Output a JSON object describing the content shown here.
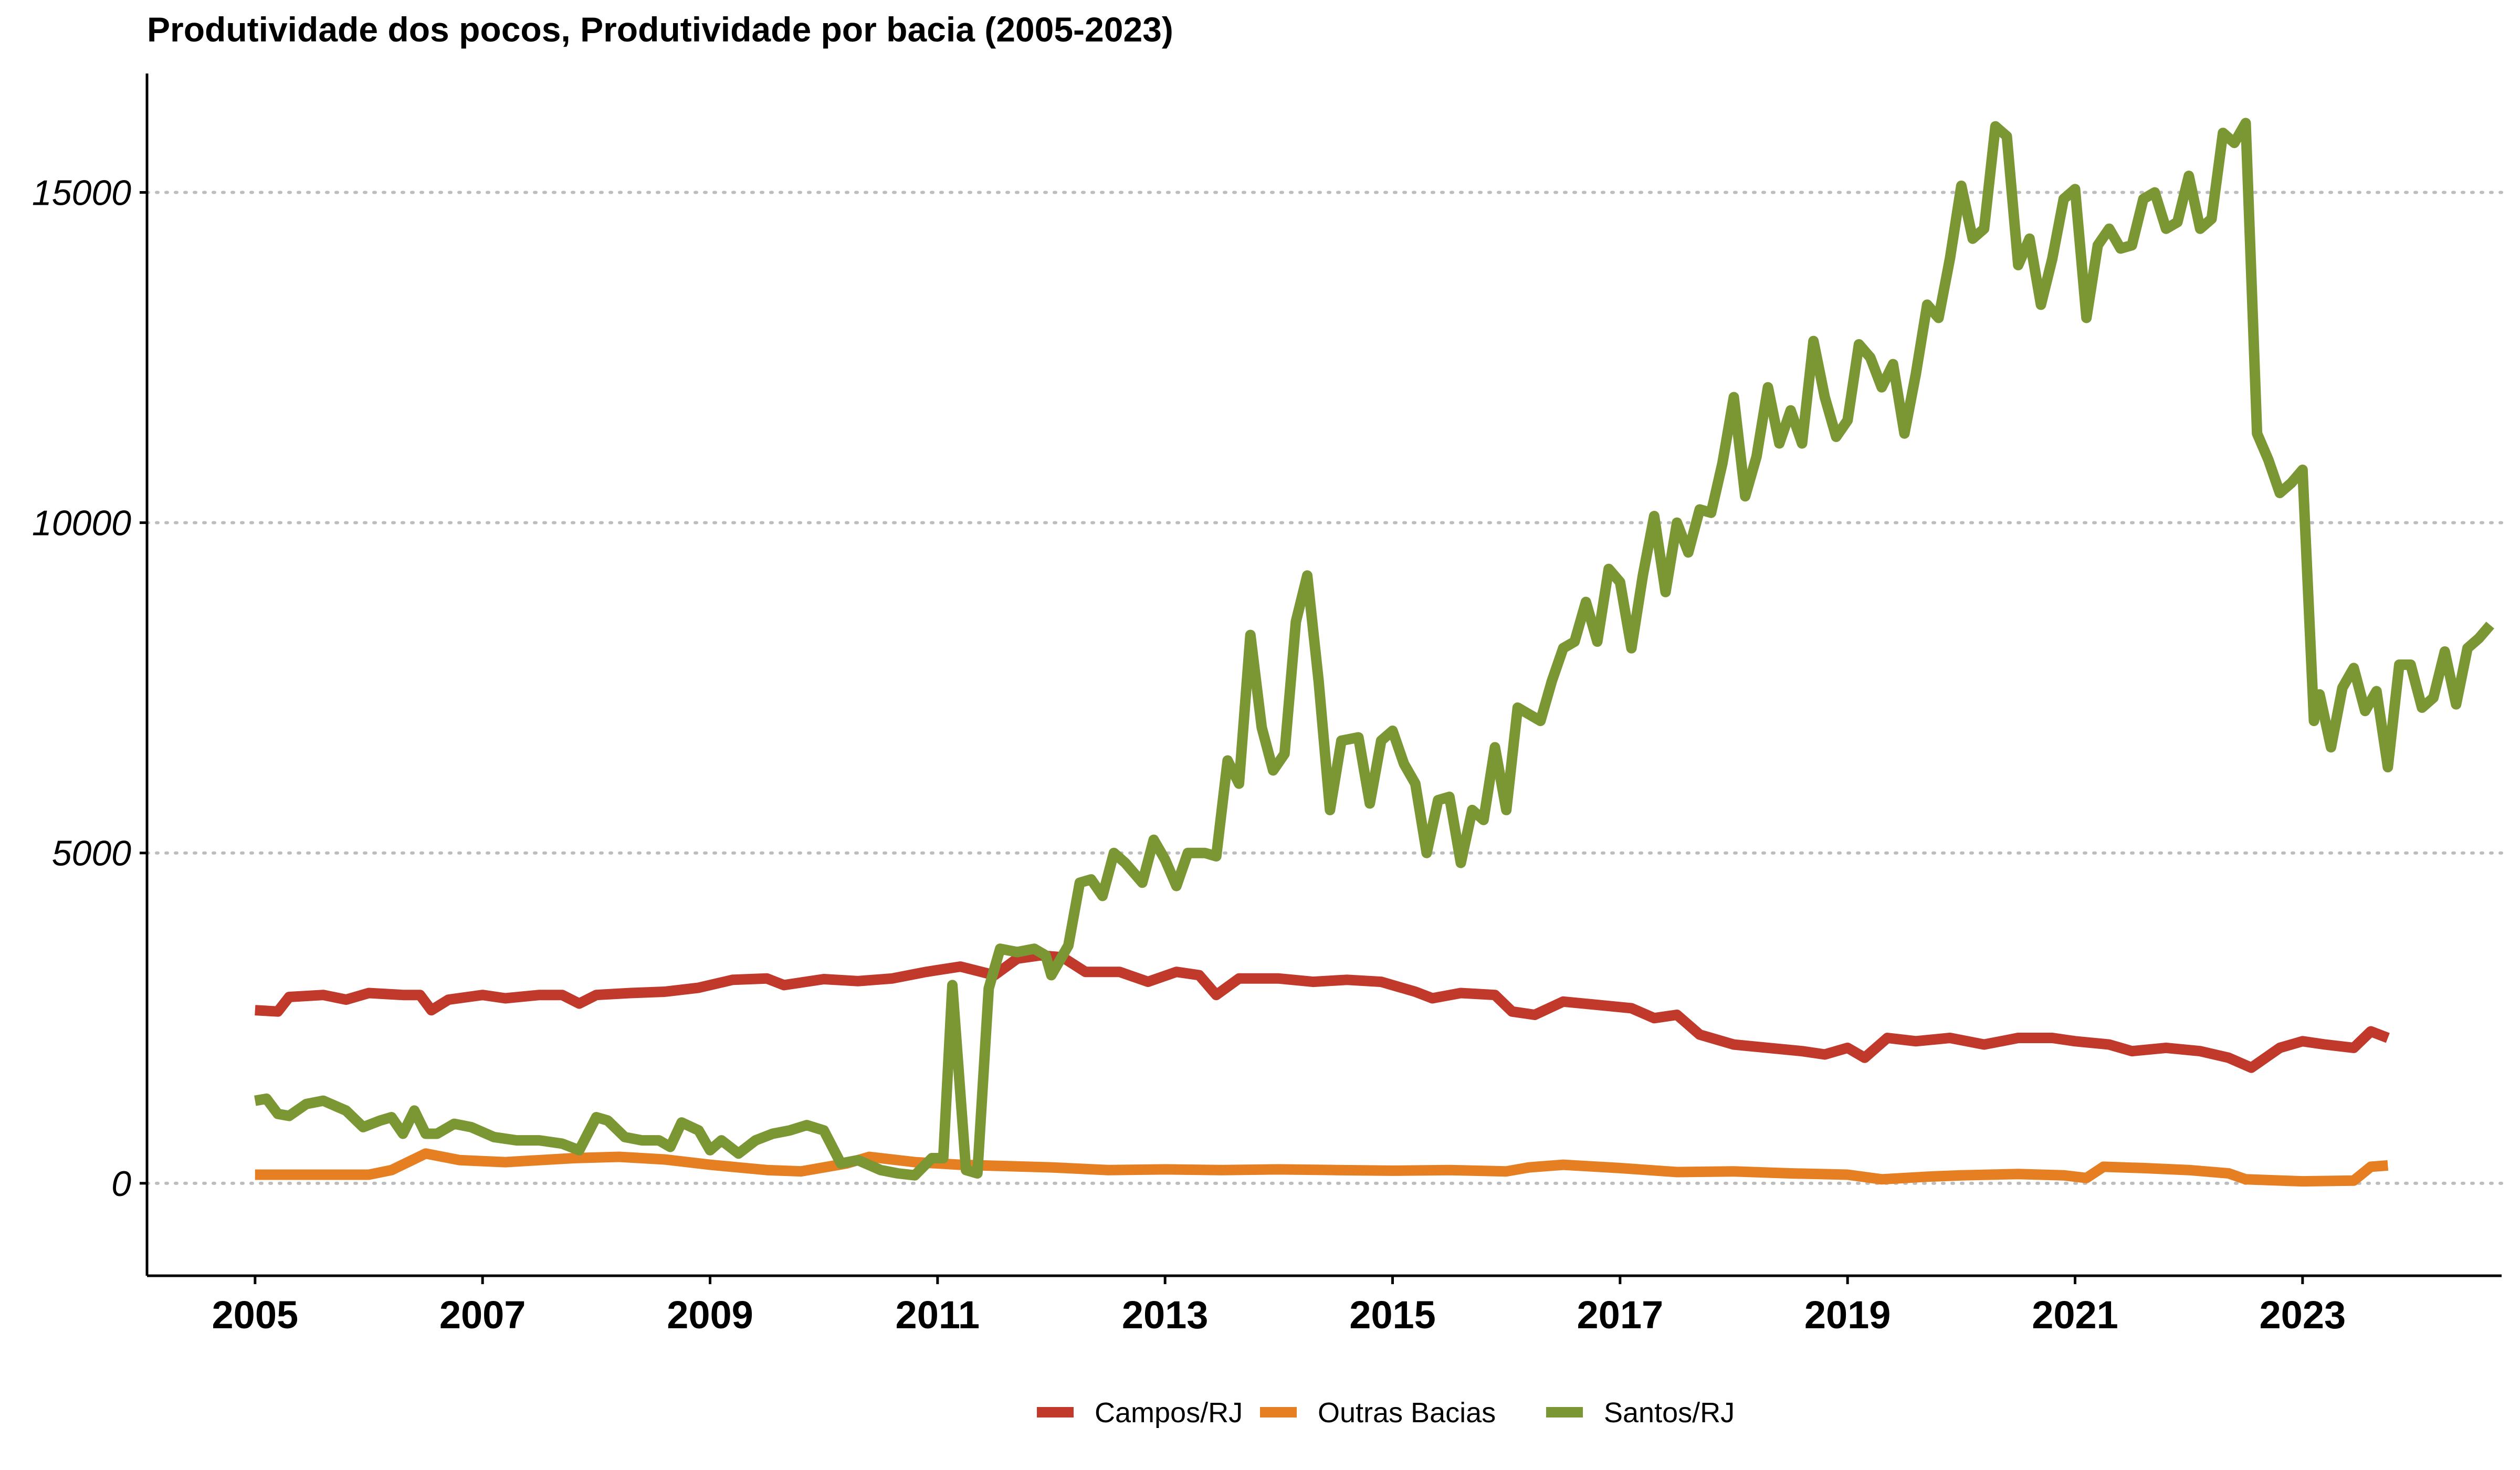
{
  "chart_data": {
    "type": "line",
    "title": "Produtividade dos pocos, Produtividade por bacia (2005-2023)",
    "xlabel": "",
    "ylabel": "",
    "xlim": [
      2004.05,
      2024.75
    ],
    "ylim": [
      -1400,
      16800
    ],
    "x_ticks": [
      2005,
      2007,
      2009,
      2011,
      2013,
      2015,
      2017,
      2019,
      2021,
      2023
    ],
    "y_ticks": [
      0,
      5000,
      10000,
      15000
    ],
    "grid": "horizontal dotted",
    "legend_position": "bottom",
    "series": [
      {
        "name": "Campos/RJ",
        "color": "#C0392B",
        "points": [
          [
            2005.0,
            2620
          ],
          [
            2005.2,
            2600
          ],
          [
            2005.3,
            2820
          ],
          [
            2005.6,
            2850
          ],
          [
            2005.8,
            2780
          ],
          [
            2006.0,
            2880
          ],
          [
            2006.3,
            2850
          ],
          [
            2006.45,
            2850
          ],
          [
            2006.55,
            2620
          ],
          [
            2006.7,
            2780
          ],
          [
            2007.0,
            2850
          ],
          [
            2007.2,
            2800
          ],
          [
            2007.5,
            2850
          ],
          [
            2007.7,
            2850
          ],
          [
            2007.85,
            2720
          ],
          [
            2008.0,
            2850
          ],
          [
            2008.3,
            2880
          ],
          [
            2008.6,
            2900
          ],
          [
            2008.9,
            2960
          ],
          [
            2009.2,
            3080
          ],
          [
            2009.5,
            3100
          ],
          [
            2009.65,
            3000
          ],
          [
            2010.0,
            3090
          ],
          [
            2010.3,
            3060
          ],
          [
            2010.6,
            3100
          ],
          [
            2010.9,
            3200
          ],
          [
            2011.2,
            3280
          ],
          [
            2011.5,
            3150
          ],
          [
            2011.7,
            3400
          ],
          [
            2011.9,
            3450
          ],
          [
            2012.1,
            3420
          ],
          [
            2012.3,
            3200
          ],
          [
            2012.6,
            3200
          ],
          [
            2012.85,
            3050
          ],
          [
            2013.1,
            3200
          ],
          [
            2013.3,
            3150
          ],
          [
            2013.45,
            2850
          ],
          [
            2013.65,
            3100
          ],
          [
            2014.0,
            3100
          ],
          [
            2014.3,
            3050
          ],
          [
            2014.6,
            3080
          ],
          [
            2014.9,
            3050
          ],
          [
            2015.2,
            2900
          ],
          [
            2015.35,
            2800
          ],
          [
            2015.6,
            2880
          ],
          [
            2015.9,
            2850
          ],
          [
            2016.05,
            2600
          ],
          [
            2016.25,
            2550
          ],
          [
            2016.5,
            2750
          ],
          [
            2016.8,
            2700
          ],
          [
            2017.1,
            2650
          ],
          [
            2017.3,
            2500
          ],
          [
            2017.5,
            2550
          ],
          [
            2017.7,
            2250
          ],
          [
            2018.0,
            2100
          ],
          [
            2018.3,
            2050
          ],
          [
            2018.6,
            2000
          ],
          [
            2018.8,
            1950
          ],
          [
            2019.0,
            2050
          ],
          [
            2019.15,
            1900
          ],
          [
            2019.35,
            2200
          ],
          [
            2019.6,
            2150
          ],
          [
            2019.9,
            2200
          ],
          [
            2020.2,
            2100
          ],
          [
            2020.5,
            2200
          ],
          [
            2020.8,
            2200
          ],
          [
            2021.0,
            2150
          ],
          [
            2021.3,
            2100
          ],
          [
            2021.5,
            2000
          ],
          [
            2021.8,
            2050
          ],
          [
            2022.1,
            2000
          ],
          [
            2022.35,
            1900
          ],
          [
            2022.55,
            1750
          ],
          [
            2022.8,
            2050
          ],
          [
            2023.0,
            2150
          ],
          [
            2023.2,
            2100
          ],
          [
            2023.45,
            2050
          ],
          [
            2023.6,
            2300
          ],
          [
            2023.75,
            2200
          ]
        ]
      },
      {
        "name": "Outras Bacias",
        "color": "#E67E22",
        "points": [
          [
            2005.0,
            130
          ],
          [
            2005.5,
            130
          ],
          [
            2006.0,
            130
          ],
          [
            2006.2,
            200
          ],
          [
            2006.5,
            450
          ],
          [
            2006.8,
            350
          ],
          [
            2007.2,
            320
          ],
          [
            2007.5,
            350
          ],
          [
            2007.8,
            380
          ],
          [
            2008.2,
            400
          ],
          [
            2008.6,
            360
          ],
          [
            2009.0,
            280
          ],
          [
            2009.5,
            200
          ],
          [
            2009.8,
            180
          ],
          [
            2010.2,
            300
          ],
          [
            2010.4,
            400
          ],
          [
            2010.8,
            320
          ],
          [
            2011.2,
            280
          ],
          [
            2011.6,
            260
          ],
          [
            2012.0,
            240
          ],
          [
            2012.5,
            200
          ],
          [
            2013.0,
            210
          ],
          [
            2013.5,
            200
          ],
          [
            2014.0,
            210
          ],
          [
            2014.5,
            200
          ],
          [
            2015.0,
            190
          ],
          [
            2015.5,
            200
          ],
          [
            2016.0,
            180
          ],
          [
            2016.2,
            240
          ],
          [
            2016.5,
            280
          ],
          [
            2017.0,
            230
          ],
          [
            2017.5,
            170
          ],
          [
            2018.0,
            180
          ],
          [
            2018.5,
            150
          ],
          [
            2019.0,
            130
          ],
          [
            2019.3,
            60
          ],
          [
            2019.7,
            100
          ],
          [
            2020.0,
            120
          ],
          [
            2020.5,
            140
          ],
          [
            2020.9,
            120
          ],
          [
            2021.1,
            80
          ],
          [
            2021.25,
            250
          ],
          [
            2021.6,
            230
          ],
          [
            2022.0,
            200
          ],
          [
            2022.35,
            150
          ],
          [
            2022.5,
            60
          ],
          [
            2023.0,
            30
          ],
          [
            2023.45,
            40
          ],
          [
            2023.6,
            250
          ],
          [
            2023.75,
            270
          ]
        ]
      },
      {
        "name": "Santos/RJ",
        "color": "#7A9734",
        "points": [
          [
            2005.0,
            1250
          ],
          [
            2005.1,
            1280
          ],
          [
            2005.2,
            1050
          ],
          [
            2005.3,
            1020
          ],
          [
            2005.45,
            1200
          ],
          [
            2005.6,
            1250
          ],
          [
            2005.8,
            1100
          ],
          [
            2005.95,
            850
          ],
          [
            2006.1,
            950
          ],
          [
            2006.2,
            1000
          ],
          [
            2006.3,
            750
          ],
          [
            2006.4,
            1100
          ],
          [
            2006.5,
            750
          ],
          [
            2006.6,
            750
          ],
          [
            2006.75,
            900
          ],
          [
            2006.9,
            850
          ],
          [
            2007.1,
            700
          ],
          [
            2007.3,
            650
          ],
          [
            2007.5,
            650
          ],
          [
            2007.7,
            600
          ],
          [
            2007.85,
            500
          ],
          [
            2008.0,
            1000
          ],
          [
            2008.1,
            950
          ],
          [
            2008.25,
            700
          ],
          [
            2008.4,
            650
          ],
          [
            2008.55,
            650
          ],
          [
            2008.65,
            550
          ],
          [
            2008.75,
            920
          ],
          [
            2008.9,
            800
          ],
          [
            2009.0,
            500
          ],
          [
            2009.1,
            650
          ],
          [
            2009.25,
            450
          ],
          [
            2009.4,
            650
          ],
          [
            2009.55,
            750
          ],
          [
            2009.7,
            800
          ],
          [
            2009.85,
            880
          ],
          [
            2010.0,
            800
          ],
          [
            2010.15,
            300
          ],
          [
            2010.3,
            350
          ],
          [
            2010.5,
            200
          ],
          [
            2010.65,
            150
          ],
          [
            2010.8,
            120
          ],
          [
            2010.95,
            380
          ],
          [
            2011.05,
            380
          ],
          [
            2011.13,
            3000
          ],
          [
            2011.25,
            200
          ],
          [
            2011.35,
            150
          ],
          [
            2011.45,
            2950
          ],
          [
            2011.55,
            3550
          ],
          [
            2011.7,
            3500
          ],
          [
            2011.85,
            3550
          ],
          [
            2011.95,
            3450
          ],
          [
            2012.0,
            3150
          ],
          [
            2012.15,
            3600
          ],
          [
            2012.25,
            4550
          ],
          [
            2012.35,
            4600
          ],
          [
            2012.45,
            4350
          ],
          [
            2012.55,
            5000
          ],
          [
            2012.65,
            4850
          ],
          [
            2012.8,
            4550
          ],
          [
            2012.9,
            5200
          ],
          [
            2013.0,
            4900
          ],
          [
            2013.1,
            4500
          ],
          [
            2013.2,
            5000
          ],
          [
            2013.35,
            5000
          ],
          [
            2013.45,
            4950
          ],
          [
            2013.55,
            6400
          ],
          [
            2013.65,
            6050
          ],
          [
            2013.75,
            8300
          ],
          [
            2013.85,
            6900
          ],
          [
            2013.95,
            6250
          ],
          [
            2014.05,
            6500
          ],
          [
            2014.15,
            8500
          ],
          [
            2014.25,
            9200
          ],
          [
            2014.35,
            7600
          ],
          [
            2014.45,
            5650
          ],
          [
            2014.55,
            6700
          ],
          [
            2014.7,
            6750
          ],
          [
            2014.8,
            5750
          ],
          [
            2014.9,
            6700
          ],
          [
            2015.0,
            6850
          ],
          [
            2015.1,
            6350
          ],
          [
            2015.2,
            6050
          ],
          [
            2015.3,
            5000
          ],
          [
            2015.4,
            5800
          ],
          [
            2015.5,
            5850
          ],
          [
            2015.6,
            4850
          ],
          [
            2015.7,
            5650
          ],
          [
            2015.8,
            5500
          ],
          [
            2015.9,
            6600
          ],
          [
            2016.0,
            5650
          ],
          [
            2016.1,
            7200
          ],
          [
            2016.3,
            7000
          ],
          [
            2016.4,
            7600
          ],
          [
            2016.5,
            8100
          ],
          [
            2016.6,
            8200
          ],
          [
            2016.7,
            8800
          ],
          [
            2016.8,
            8200
          ],
          [
            2016.9,
            9300
          ],
          [
            2017.0,
            9100
          ],
          [
            2017.1,
            8100
          ],
          [
            2017.2,
            9200
          ],
          [
            2017.3,
            10100
          ],
          [
            2017.4,
            8950
          ],
          [
            2017.5,
            10000
          ],
          [
            2017.6,
            9550
          ],
          [
            2017.7,
            10200
          ],
          [
            2017.8,
            10150
          ],
          [
            2017.9,
            10900
          ],
          [
            2018.0,
            11900
          ],
          [
            2018.1,
            10400
          ],
          [
            2018.2,
            11000
          ],
          [
            2018.3,
            12050
          ],
          [
            2018.4,
            11200
          ],
          [
            2018.5,
            11700
          ],
          [
            2018.6,
            11200
          ],
          [
            2018.7,
            12750
          ],
          [
            2018.8,
            11900
          ],
          [
            2018.9,
            11300
          ],
          [
            2019.0,
            11550
          ],
          [
            2019.1,
            12700
          ],
          [
            2019.2,
            12500
          ],
          [
            2019.3,
            12050
          ],
          [
            2019.4,
            12400
          ],
          [
            2019.5,
            11350
          ],
          [
            2019.6,
            12250
          ],
          [
            2019.7,
            13300
          ],
          [
            2019.8,
            13100
          ],
          [
            2019.9,
            14000
          ],
          [
            2020.0,
            15100
          ],
          [
            2020.1,
            14300
          ],
          [
            2020.2,
            14450
          ],
          [
            2020.3,
            16000
          ],
          [
            2020.4,
            15850
          ],
          [
            2020.5,
            13900
          ],
          [
            2020.6,
            14300
          ],
          [
            2020.7,
            13300
          ],
          [
            2020.8,
            14000
          ],
          [
            2020.9,
            14900
          ],
          [
            2021.0,
            15050
          ],
          [
            2021.1,
            13100
          ],
          [
            2021.2,
            14200
          ],
          [
            2021.3,
            14450
          ],
          [
            2021.4,
            14150
          ],
          [
            2021.5,
            14200
          ],
          [
            2021.6,
            14900
          ],
          [
            2021.7,
            15000
          ],
          [
            2021.8,
            14450
          ],
          [
            2021.9,
            14550
          ],
          [
            2022.0,
            15250
          ],
          [
            2022.1,
            14450
          ],
          [
            2022.2,
            14600
          ],
          [
            2022.3,
            15900
          ],
          [
            2022.4,
            15750
          ],
          [
            2022.5,
            16050
          ],
          [
            2022.6,
            11350
          ],
          [
            2022.7,
            10950
          ],
          [
            2022.8,
            10450
          ],
          [
            2022.9,
            10600
          ],
          [
            2023.0,
            10800
          ],
          [
            2023.1,
            7000
          ],
          [
            2023.15,
            7400
          ],
          [
            2023.25,
            6600
          ],
          [
            2023.35,
            7500
          ],
          [
            2023.45,
            7800
          ],
          [
            2023.55,
            7150
          ],
          [
            2023.65,
            7450
          ],
          [
            2023.75,
            6300
          ],
          [
            2023.85,
            7850
          ],
          [
            2023.95,
            7850
          ],
          [
            2024.05,
            7200
          ],
          [
            2024.15,
            7350
          ],
          [
            2024.25,
            8050
          ],
          [
            2024.35,
            7250
          ],
          [
            2024.45,
            8100
          ],
          [
            2024.55,
            8250
          ],
          [
            2024.65,
            8450
          ]
        ]
      }
    ]
  }
}
